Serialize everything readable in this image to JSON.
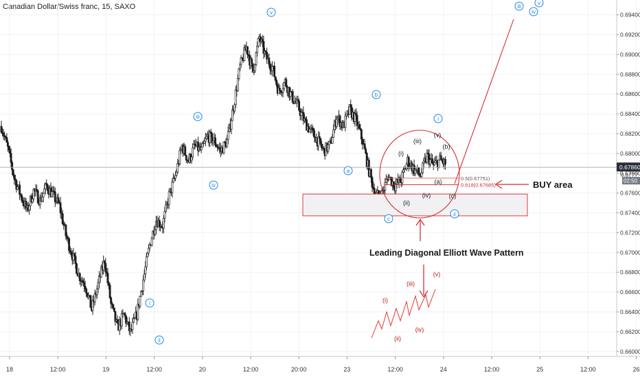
{
  "header": {
    "title": "Canadian Dollar/Swiss franc, 15, SAXO"
  },
  "colors": {
    "candle": "#1f1f1f",
    "fib_line": "#d32f2f",
    "fib_line_soft": "#e57373",
    "wave_blue": "#1e88e5",
    "wave_text": "#1a1a1a",
    "wave_red_text": "#b71c1c",
    "box_fill": "#f1f1f4",
    "box_stroke": "#e53935",
    "price_bg": "#2a2e39",
    "countdown_bg": "#787b86",
    "axis_text": "#333333",
    "grid": "#f2f2f2"
  },
  "chart_data": {
    "type": "candlestick",
    "ylim": [
      0.6595,
      0.6955
    ],
    "y_ticks": [
      "0.66000",
      "0.66200",
      "0.66400",
      "0.66600",
      "0.66800",
      "0.67000",
      "0.67200",
      "0.67400",
      "0.67600",
      "0.67800",
      "0.68000",
      "0.68200",
      "0.68400",
      "0.68600",
      "0.68800",
      "0.69000",
      "0.69200",
      "0.69400"
    ],
    "x_ticks": [
      "18",
      "12:00",
      "19",
      "12:00",
      "20",
      "12:00",
      "20:00",
      "23",
      "12:00",
      "24",
      "12:00",
      "25",
      "12:00",
      "26"
    ],
    "current_price": "0.67860",
    "countdown": "02:50",
    "hidden_label": "0.67??",
    "price_path": [
      [
        0.6825,
        0.683
      ],
      [
        0.68,
        0.681
      ],
      [
        0.677,
        0.678
      ],
      [
        0.6755,
        0.676
      ],
      [
        0.674,
        0.6745
      ],
      [
        0.676,
        0.6765
      ],
      [
        0.675,
        0.6755
      ],
      [
        0.6765,
        0.677
      ],
      [
        0.6755,
        0.676
      ],
      [
        0.6745,
        0.675
      ],
      [
        0.6715,
        0.672
      ],
      [
        0.6695,
        0.67
      ],
      [
        0.6675,
        0.668
      ],
      [
        0.6665,
        0.667
      ],
      [
        0.664,
        0.6645
      ],
      [
        0.6665,
        0.667
      ],
      [
        0.669,
        0.6695
      ],
      [
        0.6645,
        0.665
      ],
      [
        0.6622,
        0.6625
      ],
      [
        0.6635,
        0.664
      ],
      [
        0.6618,
        0.662
      ],
      [
        0.6635,
        0.664
      ],
      [
        0.667,
        0.6675
      ],
      [
        0.6705,
        0.671
      ],
      [
        0.673,
        0.6735
      ],
      [
        0.6725,
        0.673
      ],
      [
        0.6755,
        0.676
      ],
      [
        0.6775,
        0.678
      ],
      [
        0.6805,
        0.681
      ],
      [
        0.679,
        0.6795
      ],
      [
        0.6805,
        0.681
      ],
      [
        0.68,
        0.6805
      ],
      [
        0.6815,
        0.682
      ],
      [
        0.681,
        0.6815
      ],
      [
        0.68,
        0.6805
      ],
      [
        0.681,
        0.6815
      ],
      [
        0.6845,
        0.685
      ],
      [
        0.6885,
        0.689
      ],
      [
        0.6905,
        0.691
      ],
      [
        0.688,
        0.6885
      ],
      [
        0.6915,
        0.692
      ],
      [
        0.6895,
        0.69
      ],
      [
        0.6885,
        0.689
      ],
      [
        0.686,
        0.6865
      ],
      [
        0.687,
        0.6875
      ],
      [
        0.6855,
        0.686
      ],
      [
        0.6845,
        0.685
      ],
      [
        0.683,
        0.6835
      ],
      [
        0.682,
        0.6825
      ],
      [
        0.6812,
        0.6815
      ],
      [
        0.68,
        0.6805
      ],
      [
        0.6808,
        0.681
      ],
      [
        0.6835,
        0.684
      ],
      [
        0.6825,
        0.683
      ],
      [
        0.6843,
        0.6845
      ],
      [
        0.6832,
        0.6835
      ],
      [
        0.681,
        0.6815
      ],
      [
        0.678,
        0.6785
      ],
      [
        0.6755,
        0.676
      ],
      [
        0.6758,
        0.676
      ],
      [
        0.6775,
        0.678
      ],
      [
        0.6765,
        0.677
      ],
      [
        0.6772,
        0.6775
      ],
      [
        0.679,
        0.6795
      ],
      [
        0.6783,
        0.6785
      ],
      [
        0.6776,
        0.678
      ],
      [
        0.6795,
        0.68
      ],
      [
        0.6785,
        0.679
      ],
      [
        0.6792,
        0.6795
      ],
      [
        0.6788,
        0.679
      ]
    ],
    "annotations": {
      "blue": [
        "v",
        "iii",
        "iv",
        "ii",
        "i",
        "a",
        "b",
        "c",
        "i",
        "ii",
        "iii",
        "iv",
        "v"
      ],
      "black": [
        "(v)",
        "(iii)",
        "(i)",
        "(b)",
        "(a)",
        "(ii)",
        "(iv)",
        "(c)"
      ],
      "red_pattern": [
        "(i)",
        "(ii)",
        "(iii)",
        "(iv)",
        "(v)"
      ]
    },
    "fib_levels": [
      {
        "label": "0.5(0.67751)",
        "value": 0.67751
      },
      {
        "label": "0.618(0.67685)",
        "value": 0.67685
      }
    ],
    "buy_zone": [
      0.6737,
      0.6759
    ],
    "texts": {
      "buy_area": "BUY area",
      "pattern": "Leading Diagonal Elliott Wave Pattern"
    }
  }
}
